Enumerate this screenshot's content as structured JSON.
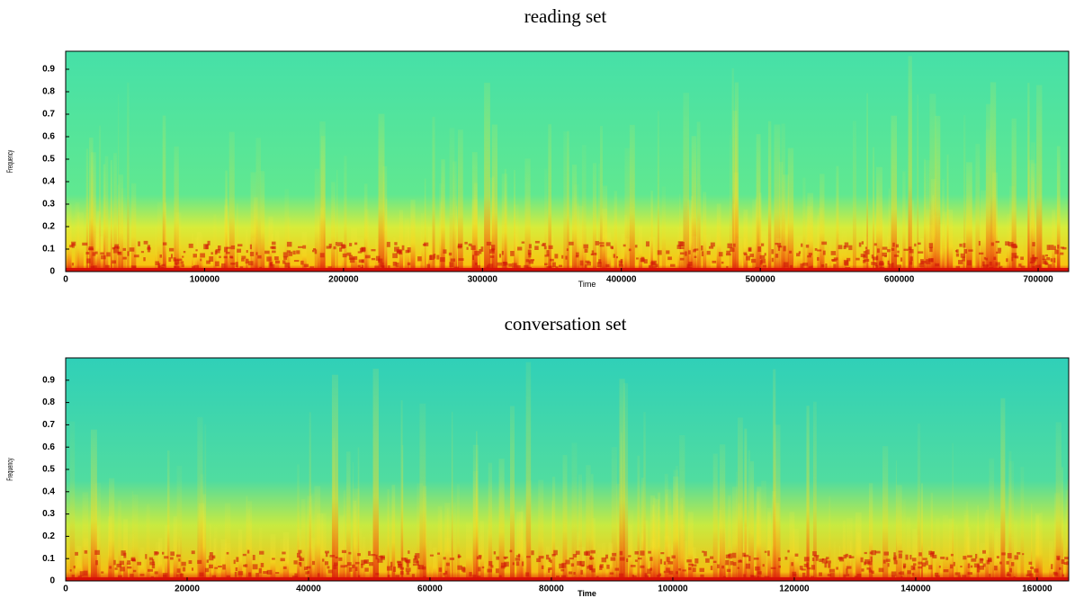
{
  "chart_data": [
    {
      "type": "spectrogram",
      "title": "reading set",
      "xlabel": "Time",
      "ylabel": "Frequency",
      "xlim": [
        0,
        722000
      ],
      "xticks": [
        0,
        100000,
        200000,
        300000,
        400000,
        500000,
        600000,
        700000
      ],
      "ylim": [
        0,
        0.98
      ],
      "yticks": [
        0,
        0.1,
        0.2,
        0.3,
        0.4,
        0.5,
        0.6,
        0.7,
        0.8,
        0.9
      ]
    },
    {
      "type": "spectrogram",
      "title": "conversation set",
      "xlabel": "Time",
      "ylabel": "Frequency",
      "xlim": [
        0,
        165200
      ],
      "xticks": [
        0,
        20000,
        40000,
        60000,
        80000,
        100000,
        120000,
        140000,
        160000
      ],
      "ylim": [
        0,
        1
      ],
      "yticks": [
        0,
        0.1,
        0.2,
        0.3,
        0.4,
        0.5,
        0.6,
        0.7,
        0.8,
        0.9
      ]
    }
  ]
}
